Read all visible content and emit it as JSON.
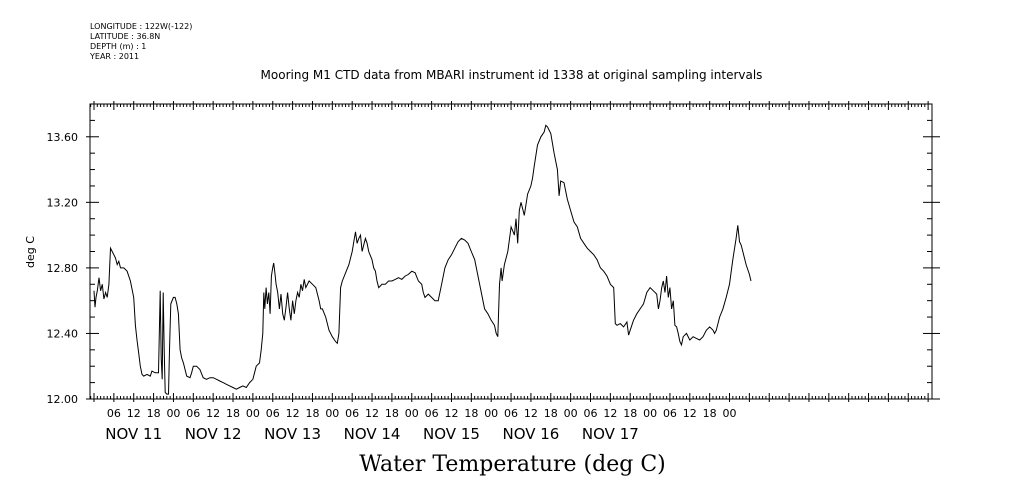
{
  "meta": {
    "longitude": "LONGITUDE : 122W(-122)",
    "latitude": "LATITUDE : 36.8N",
    "depth": "DEPTH (m) : 1",
    "year": "YEAR : 2011"
  },
  "chart_data": {
    "type": "line",
    "title": "Mooring M1 CTD data from MBARI instrument id 1338 at original sampling intervals",
    "xlabel": "Water Temperature (deg C)",
    "ylabel": "deg C",
    "ylim": [
      12.0,
      13.8
    ],
    "y_ticks": [
      "12.00",
      "12.40",
      "12.80",
      "13.20",
      "13.60"
    ],
    "x_hour_ticks": [
      "06",
      "12",
      "18",
      "00",
      "06",
      "12",
      "18",
      "00",
      "06",
      "12",
      "18",
      "00",
      "06",
      "12",
      "18",
      "00",
      "06",
      "12",
      "18",
      "00",
      "06",
      "12",
      "18",
      "00",
      "06",
      "12",
      "18",
      "00",
      "06",
      "12",
      "18",
      "00"
    ],
    "day_labels": [
      "NOV 11",
      "NOV 12",
      "NOV 13",
      "NOV 14",
      "NOV 15",
      "NOV 16",
      "NOV 17"
    ],
    "grid": false,
    "series": [
      {
        "color": "#000000",
        "x_unit": "hours since 2011-11-11 00:00",
        "points": [
          [
            0,
            12.66
          ],
          [
            0.3,
            12.56
          ],
          [
            0.6,
            12.62
          ],
          [
            1,
            12.66
          ],
          [
            1.5,
            12.74
          ],
          [
            2,
            12.66
          ],
          [
            2.5,
            12.7
          ],
          [
            3,
            12.61
          ],
          [
            3.5,
            12.65
          ],
          [
            4,
            12.62
          ],
          [
            4.5,
            12.7
          ],
          [
            5,
            12.92
          ],
          [
            5.5,
            12.9
          ],
          [
            6,
            12.88
          ],
          [
            6.5,
            12.86
          ],
          [
            7,
            12.82
          ],
          [
            7.5,
            12.84
          ],
          [
            8,
            12.8
          ],
          [
            9,
            12.8
          ],
          [
            10,
            12.78
          ],
          [
            11,
            12.72
          ],
          [
            12,
            12.62
          ],
          [
            12.5,
            12.45
          ],
          [
            13,
            12.36
          ],
          [
            13.5,
            12.28
          ],
          [
            14,
            12.2
          ],
          [
            14.5,
            12.15
          ],
          [
            15,
            12.14
          ],
          [
            16,
            12.15
          ],
          [
            17,
            12.14
          ],
          [
            17.5,
            12.17
          ],
          [
            18.5,
            12.16
          ],
          [
            19.5,
            12.16
          ],
          [
            20,
            12.66
          ],
          [
            20.3,
            12.25
          ],
          [
            20.6,
            12.12
          ],
          [
            20.9,
            12.65
          ],
          [
            21.2,
            12.3
          ],
          [
            21.5,
            12.04
          ],
          [
            22,
            12.03
          ],
          [
            22.5,
            12.03
          ],
          [
            22.8,
            12.3
          ],
          [
            23.2,
            12.58
          ],
          [
            24,
            12.62
          ],
          [
            24.5,
            12.62
          ],
          [
            25,
            12.58
          ],
          [
            25.5,
            12.52
          ],
          [
            26,
            12.3
          ],
          [
            26.5,
            12.25
          ],
          [
            27,
            12.22
          ],
          [
            28,
            12.14
          ],
          [
            29,
            12.13
          ],
          [
            29.5,
            12.16
          ],
          [
            30,
            12.2
          ],
          [
            31,
            12.2
          ],
          [
            32,
            12.18
          ],
          [
            33,
            12.13
          ],
          [
            34,
            12.12
          ],
          [
            35,
            12.13
          ],
          [
            36,
            12.13
          ],
          [
            37,
            12.12
          ],
          [
            38,
            12.11
          ],
          [
            39,
            12.1
          ],
          [
            40,
            12.09
          ],
          [
            41,
            12.08
          ],
          [
            42,
            12.07
          ],
          [
            43,
            12.06
          ],
          [
            44,
            12.07
          ],
          [
            45,
            12.08
          ],
          [
            46,
            12.07
          ],
          [
            47,
            12.1
          ],
          [
            48,
            12.12
          ],
          [
            49,
            12.2
          ],
          [
            50,
            12.22
          ],
          [
            50.5,
            12.3
          ],
          [
            51,
            12.4
          ],
          [
            51.3,
            12.65
          ],
          [
            51.6,
            12.55
          ],
          [
            52,
            12.68
          ],
          [
            52.4,
            12.58
          ],
          [
            52.8,
            12.65
          ],
          [
            53.2,
            12.52
          ],
          [
            53.6,
            12.75
          ],
          [
            54,
            12.8
          ],
          [
            54.3,
            12.83
          ],
          [
            54.6,
            12.78
          ],
          [
            55,
            12.7
          ],
          [
            55.5,
            12.65
          ],
          [
            56,
            12.55
          ],
          [
            56.5,
            12.64
          ],
          [
            57,
            12.52
          ],
          [
            57.5,
            12.48
          ],
          [
            58,
            12.56
          ],
          [
            58.5,
            12.65
          ],
          [
            59,
            12.55
          ],
          [
            59.5,
            12.48
          ],
          [
            60,
            12.6
          ],
          [
            60.5,
            12.52
          ],
          [
            61,
            12.6
          ],
          [
            61.5,
            12.65
          ],
          [
            62,
            12.62
          ],
          [
            62.5,
            12.7
          ],
          [
            63,
            12.66
          ],
          [
            63.5,
            12.73
          ],
          [
            64,
            12.68
          ],
          [
            65,
            12.72
          ],
          [
            66,
            12.7
          ],
          [
            67,
            12.68
          ],
          [
            68,
            12.6
          ],
          [
            68.5,
            12.55
          ],
          [
            69,
            12.55
          ],
          [
            70,
            12.5
          ],
          [
            71,
            12.42
          ],
          [
            72,
            12.38
          ],
          [
            73,
            12.35
          ],
          [
            73.5,
            12.34
          ],
          [
            74,
            12.4
          ],
          [
            74.5,
            12.68
          ],
          [
            75,
            12.72
          ],
          [
            76,
            12.77
          ],
          [
            77,
            12.82
          ],
          [
            78,
            12.9
          ],
          [
            78.5,
            12.96
          ],
          [
            79,
            13.02
          ],
          [
            79.5,
            12.95
          ],
          [
            80,
            12.98
          ],
          [
            80.5,
            13.0
          ],
          [
            81,
            12.9
          ],
          [
            82,
            12.98
          ],
          [
            82.5,
            12.95
          ],
          [
            83,
            12.9
          ],
          [
            84,
            12.85
          ],
          [
            84.5,
            12.8
          ],
          [
            85,
            12.78
          ],
          [
            85.5,
            12.72
          ],
          [
            86,
            12.68
          ],
          [
            87,
            12.7
          ],
          [
            88,
            12.7
          ],
          [
            89,
            12.72
          ],
          [
            90,
            12.72
          ],
          [
            91,
            12.73
          ],
          [
            92,
            12.74
          ],
          [
            93,
            12.73
          ],
          [
            94,
            12.75
          ],
          [
            95,
            12.76
          ],
          [
            96,
            12.78
          ],
          [
            97,
            12.77
          ],
          [
            98,
            12.72
          ],
          [
            99,
            12.7
          ],
          [
            99.5,
            12.65
          ],
          [
            100,
            12.62
          ],
          [
            101,
            12.64
          ],
          [
            102,
            12.62
          ],
          [
            103,
            12.6
          ],
          [
            104,
            12.6
          ],
          [
            105,
            12.7
          ],
          [
            106,
            12.8
          ],
          [
            107,
            12.85
          ],
          [
            108,
            12.88
          ],
          [
            109,
            12.92
          ],
          [
            110,
            12.96
          ],
          [
            111,
            12.98
          ],
          [
            112,
            12.97
          ],
          [
            113,
            12.95
          ],
          [
            114,
            12.9
          ],
          [
            115,
            12.85
          ],
          [
            116,
            12.75
          ],
          [
            117,
            12.65
          ],
          [
            118,
            12.55
          ],
          [
            119,
            12.52
          ],
          [
            120,
            12.48
          ],
          [
            121,
            12.45
          ],
          [
            121.5,
            12.4
          ],
          [
            122,
            12.38
          ],
          [
            122.5,
            12.7
          ],
          [
            123,
            12.8
          ],
          [
            123.3,
            12.72
          ],
          [
            124,
            12.82
          ],
          [
            125,
            12.9
          ],
          [
            126,
            13.05
          ],
          [
            127,
            13.0
          ],
          [
            127.5,
            13.1
          ],
          [
            128,
            12.95
          ],
          [
            128.5,
            13.15
          ],
          [
            129,
            13.2
          ],
          [
            130,
            13.12
          ],
          [
            131,
            13.25
          ],
          [
            132,
            13.3
          ],
          [
            132.5,
            13.35
          ],
          [
            133,
            13.42
          ],
          [
            134,
            13.55
          ],
          [
            135,
            13.6
          ],
          [
            136,
            13.63
          ],
          [
            136.5,
            13.67
          ],
          [
            137,
            13.66
          ],
          [
            138,
            13.62
          ],
          [
            139,
            13.5
          ],
          [
            140,
            13.4
          ],
          [
            140.5,
            13.24
          ],
          [
            141,
            13.33
          ],
          [
            142,
            13.32
          ],
          [
            143,
            13.22
          ],
          [
            144,
            13.15
          ],
          [
            145,
            13.08
          ],
          [
            146,
            13.05
          ],
          [
            147,
            12.98
          ],
          [
            148,
            12.95
          ],
          [
            149,
            12.92
          ],
          [
            150,
            12.9
          ],
          [
            151,
            12.88
          ],
          [
            152,
            12.85
          ],
          [
            153,
            12.8
          ],
          [
            154,
            12.78
          ],
          [
            155,
            12.75
          ],
          [
            156,
            12.7
          ],
          [
            157,
            12.68
          ],
          [
            157.5,
            12.46
          ],
          [
            158,
            12.45
          ],
          [
            159,
            12.46
          ],
          [
            160,
            12.44
          ],
          [
            161,
            12.47
          ],
          [
            161.5,
            12.39
          ],
          [
            162,
            12.42
          ],
          [
            163,
            12.48
          ],
          [
            164,
            12.52
          ],
          [
            165,
            12.55
          ],
          [
            166,
            12.58
          ],
          [
            167,
            12.65
          ],
          [
            168,
            12.68
          ],
          [
            169,
            12.66
          ],
          [
            170,
            12.64
          ],
          [
            170.5,
            12.55
          ],
          [
            171,
            12.6
          ],
          [
            171.5,
            12.68
          ],
          [
            172,
            12.72
          ],
          [
            172.5,
            12.65
          ],
          [
            173,
            12.75
          ],
          [
            173.5,
            12.62
          ],
          [
            174,
            12.68
          ],
          [
            174.5,
            12.55
          ],
          [
            175,
            12.6
          ],
          [
            175.5,
            12.45
          ],
          [
            176,
            12.44
          ],
          [
            176.5,
            12.4
          ],
          [
            177,
            12.35
          ],
          [
            177.5,
            12.33
          ],
          [
            178,
            12.38
          ],
          [
            179,
            12.4
          ],
          [
            180,
            12.36
          ],
          [
            181,
            12.38
          ],
          [
            182,
            12.37
          ],
          [
            183,
            12.36
          ],
          [
            184,
            12.38
          ],
          [
            185,
            12.42
          ],
          [
            186,
            12.44
          ],
          [
            187,
            12.42
          ],
          [
            187.5,
            12.4
          ],
          [
            188,
            12.42
          ],
          [
            189,
            12.5
          ],
          [
            190,
            12.55
          ],
          [
            191,
            12.62
          ],
          [
            192,
            12.7
          ],
          [
            193,
            12.85
          ],
          [
            194,
            12.98
          ],
          [
            194.5,
            13.06
          ],
          [
            195,
            12.96
          ],
          [
            195.5,
            12.94
          ],
          [
            196,
            12.9
          ],
          [
            197,
            12.82
          ],
          [
            198,
            12.76
          ],
          [
            198.5,
            12.72
          ]
        ]
      }
    ]
  }
}
